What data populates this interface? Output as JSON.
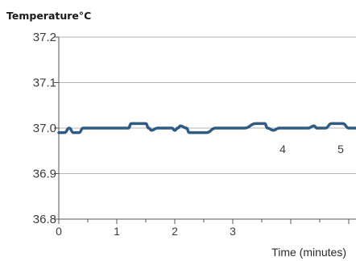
{
  "chart_data": {
    "type": "line",
    "ylabel": "Temperature°C",
    "xlabel": "Time (minutes)",
    "ylim": [
      36.8,
      37.2
    ],
    "xlim": [
      0,
      5.3
    ],
    "yticks": [
      "36.8",
      "36.9",
      "37.0",
      "37.1",
      "37.2"
    ],
    "xticks": [
      "0",
      "1",
      "2",
      "3"
    ],
    "annotations": [
      "4",
      "5"
    ],
    "grid": "horizontal",
    "series": [
      {
        "color": "#2e5b84",
        "x": [
          0,
          0.1,
          0.18,
          0.25,
          0.35,
          0.42,
          0.5,
          0.6,
          0.8,
          1.0,
          1.1,
          1.2,
          1.25,
          1.3,
          1.4,
          1.5,
          1.55,
          1.6,
          1.7,
          1.8,
          1.95,
          2.0,
          2.05,
          2.1,
          2.2,
          2.25,
          2.3,
          2.45,
          2.55,
          2.7,
          2.8,
          3.0,
          3.2,
          3.4,
          3.5,
          3.55,
          3.6,
          3.7,
          3.8,
          3.85,
          3.9,
          4.0,
          4.2,
          4.3,
          4.4,
          4.45,
          4.5,
          4.6,
          4.7,
          4.8,
          4.9,
          5.0,
          5.05,
          5.1,
          5.2
        ],
        "values": [
          36.99,
          36.99,
          37.0,
          36.99,
          36.99,
          37.0,
          37.0,
          37.0,
          37.0,
          37.0,
          37.0,
          37.0,
          37.01,
          37.01,
          37.01,
          37.01,
          37.0,
          36.995,
          37.0,
          37.0,
          37.0,
          36.995,
          37.0,
          37.005,
          37.0,
          36.99,
          36.99,
          36.99,
          36.99,
          37.0,
          37.0,
          37.0,
          37.0,
          37.01,
          37.01,
          37.01,
          37.0,
          36.995,
          37.0,
          37.0,
          37.0,
          37.0,
          37.0,
          37.0,
          37.005,
          37.0,
          37.0,
          37.0,
          37.01,
          37.01,
          37.01,
          37.0,
          37.0,
          37.0,
          37.0
        ]
      }
    ]
  }
}
